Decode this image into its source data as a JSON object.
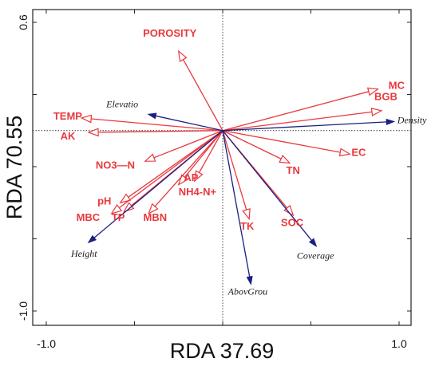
{
  "chart_data": {
    "type": "scatter",
    "subtype": "rda-biplot",
    "title": "",
    "xlabel": "RDA 37.69",
    "ylabel": "RDA 70.55",
    "xlim": [
      -1.05,
      1.05
    ],
    "ylim": [
      -1.05,
      0.65
    ],
    "x_ticks": [
      {
        "value": -1.0,
        "label": "-1.0"
      },
      {
        "value": 1.0,
        "label": "1.0"
      }
    ],
    "y_ticks": [
      {
        "value": 0.6,
        "label": "0.6"
      },
      {
        "value": -1.0,
        "label": "-1.0"
      }
    ],
    "minor_x_ticks": [
      -1.0,
      -0.5,
      0,
      0.5,
      1.0
    ],
    "minor_y_ticks": [
      0.6,
      0.2,
      -0.2,
      -0.6,
      -1.0
    ],
    "reference_lines": {
      "x": 0,
      "y": 0,
      "style": "dotted"
    },
    "grid": false,
    "colors": {
      "environment": "#e8393e",
      "response": "#1b1f80"
    },
    "series": [
      {
        "kind": "environment",
        "arrowhead": "open",
        "vectors": [
          {
            "label": "POROSITY",
            "x": -0.25,
            "y": 0.44,
            "lx": -0.3,
            "ly": 0.52,
            "anchor": "middle"
          },
          {
            "label": "TEMP",
            "x": -0.8,
            "y": 0.07,
            "lx": -0.96,
            "ly": 0.06,
            "anchor": "start"
          },
          {
            "label": "AK",
            "x": -0.76,
            "y": -0.01,
            "lx": -0.92,
            "ly": -0.05,
            "anchor": "start"
          },
          {
            "label": "NO3—N",
            "x": -0.44,
            "y": -0.17,
            "lx": -0.72,
            "ly": -0.21,
            "anchor": "start"
          },
          {
            "label": "AP",
            "x": -0.16,
            "y": -0.28,
            "lx": -0.22,
            "ly": -0.28,
            "anchor": "start"
          },
          {
            "label": "NH4-N+",
            "x": -0.25,
            "y": -0.3,
            "lx": -0.25,
            "ly": -0.36,
            "anchor": "start"
          },
          {
            "label": "pH",
            "x": -0.58,
            "y": -0.4,
            "lx": -0.71,
            "ly": -0.41,
            "anchor": "start"
          },
          {
            "label": "TP",
            "x": -0.56,
            "y": -0.45,
            "lx": -0.63,
            "ly": -0.5,
            "anchor": "start"
          },
          {
            "label": "MBC",
            "x": -0.63,
            "y": -0.46,
            "lx": -0.83,
            "ly": -0.5,
            "anchor": "start"
          },
          {
            "label": "MBN",
            "x": -0.42,
            "y": -0.46,
            "lx": -0.45,
            "ly": -0.5,
            "anchor": "start"
          },
          {
            "label": "MC",
            "x": 0.88,
            "y": 0.23,
            "lx": 0.94,
            "ly": 0.23,
            "anchor": "start"
          },
          {
            "label": "BGB",
            "x": 0.9,
            "y": 0.11,
            "lx": 0.86,
            "ly": 0.17,
            "anchor": "start"
          },
          {
            "label": "EC",
            "x": 0.72,
            "y": -0.13,
            "lx": 0.73,
            "ly": -0.14,
            "anchor": "start"
          },
          {
            "label": "TN",
            "x": 0.38,
            "y": -0.18,
            "lx": 0.36,
            "ly": -0.24,
            "anchor": "start"
          },
          {
            "label": "TK",
            "x": 0.15,
            "y": -0.49,
            "lx": 0.1,
            "ly": -0.55,
            "anchor": "start"
          },
          {
            "label": "SOC",
            "x": 0.4,
            "y": -0.47,
            "lx": 0.33,
            "ly": -0.53,
            "anchor": "start"
          }
        ]
      },
      {
        "kind": "response",
        "arrowhead": "filled",
        "vectors": [
          {
            "label": "Elevatio",
            "x": -0.42,
            "y": 0.09,
            "lx": -0.66,
            "ly": 0.13,
            "anchor": "start"
          },
          {
            "label": "Density",
            "x": 0.97,
            "y": 0.05,
            "lx": 0.99,
            "ly": 0.04,
            "anchor": "start"
          },
          {
            "label": "Height",
            "x": -0.76,
            "y": -0.62,
            "lx": -0.86,
            "ly": -0.7,
            "anchor": "start"
          },
          {
            "label": "Coverage",
            "x": 0.53,
            "y": -0.64,
            "lx": 0.42,
            "ly": -0.71,
            "anchor": "start"
          },
          {
            "label": "AbovGrou",
            "x": 0.16,
            "y": -0.85,
            "lx": 0.03,
            "ly": -0.91,
            "anchor": "start"
          }
        ]
      }
    ]
  }
}
